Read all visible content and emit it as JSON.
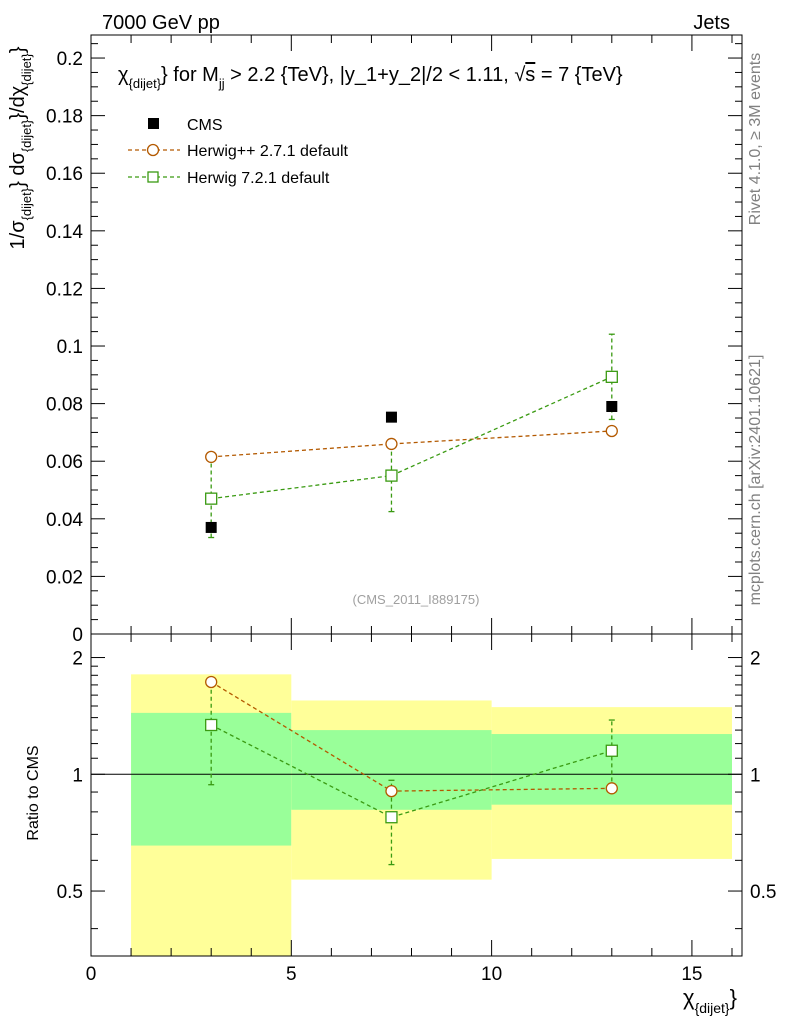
{
  "header": {
    "left_label": "7000 GeV pp",
    "right_label": "Jets"
  },
  "side_labels": {
    "rivet": "Rivet 4.1.0, ≥ 3M events",
    "mcplots": "mcplots.cern.ch [arXiv:2401.10621]"
  },
  "watermark": "(CMS_2011_I889175)",
  "colors": {
    "data": "#000000",
    "herwigpp": "#b35900",
    "herwig7": "#3a9a12",
    "band_inner": "#99ff99",
    "band_outer": "#ffff99"
  },
  "chart_data": {
    "type": "scatter",
    "title": {
      "part1": "χ",
      "part1_sub": "{dijet}",
      "part2": "} for M",
      "part2_sub": "jj",
      "part3": " > 2.2 {TeV}, |y_1+y_2|/2 < 1.11, ",
      "sqrt_symbol": "√",
      "sqrt_arg": "s",
      "part4": " = 7 {TeV}"
    },
    "ylabel": {
      "a": "1/σ",
      "a_sub": "{dijet}",
      "b": "} dσ",
      "b_sub": "{dijet}",
      "c": "}/dχ",
      "c_sub": "{dijet}",
      "d": "}"
    },
    "xlabel": {
      "main": "χ",
      "sub": "{dijet}",
      "tail": "}"
    },
    "ratio_ylabel": "Ratio to CMS",
    "xlim": [
      0,
      16.25
    ],
    "ylim": [
      0,
      0.208
    ],
    "ratio_ylim": [
      0.34,
      2.3
    ],
    "x_ticks": [
      {
        "value": 0,
        "label": "0"
      },
      {
        "value": 5,
        "label": "5"
      },
      {
        "value": 10,
        "label": "10"
      },
      {
        "value": 15,
        "label": "15"
      }
    ],
    "y_ticks": [
      {
        "value": 0,
        "label": "0"
      },
      {
        "value": 0.02,
        "label": "0.02"
      },
      {
        "value": 0.04,
        "label": "0.04"
      },
      {
        "value": 0.06,
        "label": "0.06"
      },
      {
        "value": 0.08,
        "label": "0.08"
      },
      {
        "value": 0.1,
        "label": "0.1"
      },
      {
        "value": 0.12,
        "label": "0.12"
      },
      {
        "value": 0.14,
        "label": "0.14"
      },
      {
        "value": 0.16,
        "label": "0.16"
      },
      {
        "value": 0.18,
        "label": "0.18"
      },
      {
        "value": 0.2,
        "label": "0.2"
      }
    ],
    "ratio_y_ticks": [
      {
        "value": 0.5,
        "label": "0.5"
      },
      {
        "value": 1,
        "label": "1"
      },
      {
        "value": 2,
        "label": "2"
      }
    ],
    "bins": [
      [
        1,
        5
      ],
      [
        5,
        10
      ],
      [
        10,
        16
      ]
    ],
    "data": {
      "name": "CMS",
      "x": [
        3,
        7.5,
        13
      ],
      "y": [
        0.037,
        0.0753,
        0.079
      ]
    },
    "ratio_bands": [
      {
        "x": [
          1,
          5
        ],
        "inner": [
          0.655,
          1.44
        ],
        "outer": [
          0.34,
          1.81
        ]
      },
      {
        "x": [
          5,
          10
        ],
        "inner": [
          0.81,
          1.3
        ],
        "outer": [
          0.535,
          1.55
        ]
      },
      {
        "x": [
          10,
          16
        ],
        "inner": [
          0.835,
          1.27
        ],
        "outer": [
          0.605,
          1.49
        ]
      }
    ],
    "series": [
      {
        "name": "Herwig++ 2.7.1 default",
        "marker": "circle",
        "x": [
          3,
          7.5,
          13
        ],
        "y": [
          0.0615,
          0.066,
          0.0705
        ],
        "yerr": [
          0,
          0,
          0
        ],
        "ratio": [
          1.73,
          0.905,
          0.92
        ],
        "ratio_err": [
          0,
          0,
          0
        ]
      },
      {
        "name": "Herwig 7.2.1 default",
        "marker": "square",
        "x": [
          3,
          7.5,
          13
        ],
        "y": [
          0.047,
          0.055,
          0.0893
        ],
        "yerr": [
          0.0135,
          0.0125,
          0.0148
        ],
        "ratio": [
          1.34,
          0.775,
          1.15
        ],
        "ratio_err": [
          0.4,
          0.19,
          0.23
        ]
      }
    ]
  }
}
